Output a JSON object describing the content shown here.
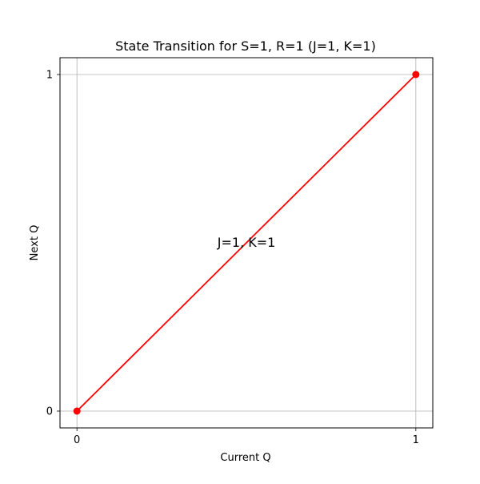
{
  "chart_data": {
    "type": "line",
    "title": "State Transition for S=1, R=1 (J=1, K=1)",
    "xlabel": "Current Q",
    "ylabel": "Next Q",
    "xlim": [
      -0.05,
      1.05
    ],
    "ylim": [
      -0.05,
      1.05
    ],
    "xticks": [
      0,
      1
    ],
    "yticks": [
      0,
      1
    ],
    "grid": true,
    "series": [
      {
        "x": [
          0,
          1
        ],
        "y": [
          0,
          1
        ],
        "color": "#ff0000",
        "marker": "circle"
      }
    ],
    "annotations": [
      {
        "text": "J=1, K=1",
        "x": 0.5,
        "y": 0.5
      }
    ]
  }
}
